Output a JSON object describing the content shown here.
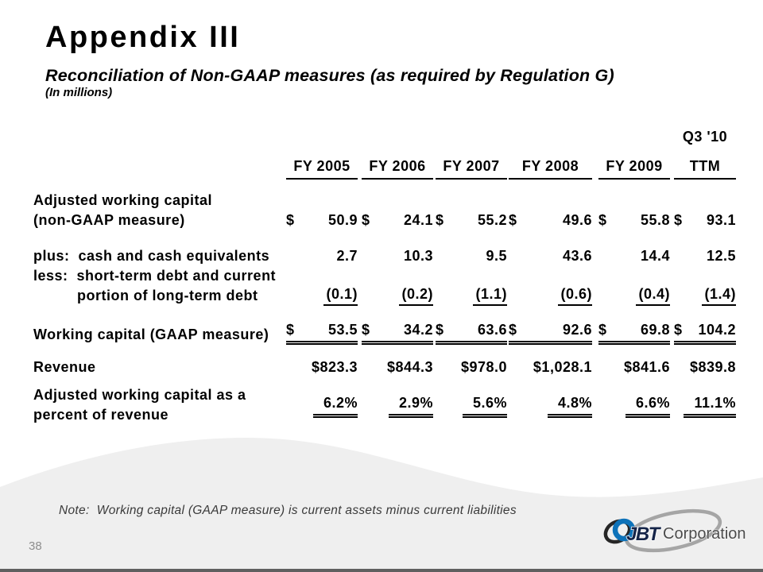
{
  "slide": {
    "title": "Appendix III",
    "subtitle": "Reconciliation of Non-GAAP measures (as required by Regulation G)",
    "units_label": "(In millions)",
    "note": "Note:  Working capital (GAAP measure) is current assets minus current liabilities",
    "page_number": "38"
  },
  "table": {
    "period_label": "Q3 '10",
    "columns": [
      "FY 2005",
      "FY 2006",
      "FY 2007",
      "FY 2008",
      "FY 2009",
      "TTM"
    ],
    "rows": [
      {
        "label_lines": [
          "Adjusted working capital",
          "(non-GAAP measure)"
        ],
        "style": "currency-split",
        "currency_symbol": "$",
        "values": [
          "50.9",
          "24.1",
          "55.2",
          "49.6",
          "55.8",
          "93.1"
        ]
      },
      {
        "label_lines": [
          "plus:  cash and cash equivalents"
        ],
        "style": "plain",
        "values": [
          "2.7",
          "10.3",
          "9.5",
          "43.6",
          "14.4",
          "12.5"
        ]
      },
      {
        "label_lines": [
          "less:  short-term debt and current",
          "          portion of long-term debt"
        ],
        "style": "plain-underline",
        "values": [
          "(0.1)",
          "(0.2)",
          "(1.1)",
          "(0.6)",
          "(0.4)",
          "(1.4)"
        ]
      },
      {
        "label_lines": [
          "Working capital (GAAP measure)"
        ],
        "style": "currency-split-double",
        "currency_symbol": "$",
        "values": [
          "53.5",
          "34.2",
          "63.6",
          "92.6",
          "69.8",
          "104.2"
        ]
      },
      {
        "label_lines": [
          "Revenue"
        ],
        "style": "plain",
        "values": [
          "$823.3",
          "$844.3",
          "$978.0",
          "$1,028.1",
          "$841.6",
          "$839.8"
        ]
      },
      {
        "label_lines": [
          "Adjusted working capital as a",
          "percent of revenue"
        ],
        "style": "percent-double",
        "values": [
          "6.2%",
          "2.9%",
          "5.6%",
          "4.8%",
          "6.6%",
          "11.1%"
        ]
      }
    ]
  },
  "logo": {
    "name": "JBT",
    "suffix": "Corporation"
  },
  "colors": {
    "text": "#000000",
    "note_text": "#3a3a3a",
    "page_number": "#8e8e8e",
    "wave_gray": "#efefef",
    "bottom_bar": "#5f5f5f",
    "logo_blue": "#0d72b9",
    "logo_dark": "#262626",
    "logo_gray": "#a5a5a5",
    "logo_navy": "#152448",
    "logo_corp_text": "#4a4a4a"
  }
}
